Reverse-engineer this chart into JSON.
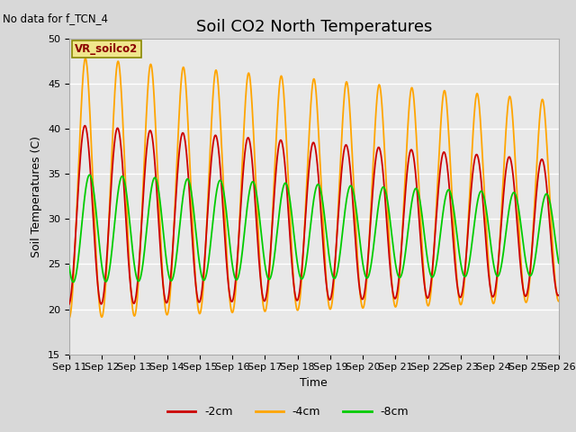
{
  "title": "Soil CO2 North Temperatures",
  "no_data_label": "No data for f_TCN_4",
  "box_label": "VR_soilco2",
  "ylabel": "Soil Temperatures (C)",
  "xlabel": "Time",
  "ylim": [
    15,
    50
  ],
  "xlim": [
    0,
    15
  ],
  "x_tick_labels": [
    "Sep 11",
    "Sep 12",
    "Sep 13",
    "Sep 14",
    "Sep 15",
    "Sep 16",
    "Sep 17",
    "Sep 18",
    "Sep 19",
    "Sep 20",
    "Sep 21",
    "Sep 22",
    "Sep 23",
    "Sep 24",
    "Sep 25",
    "Sep 26"
  ],
  "bg_color": "#d8d8d8",
  "plot_bg_color": "#e8e8e8",
  "line_colors": {
    "neg2cm": "#cc0000",
    "neg4cm": "#ffa500",
    "neg8cm": "#00cc00"
  },
  "legend_labels": [
    "-2cm",
    "-4cm",
    "-8cm"
  ],
  "title_fontsize": 13,
  "label_fontsize": 9,
  "tick_fontsize": 8
}
